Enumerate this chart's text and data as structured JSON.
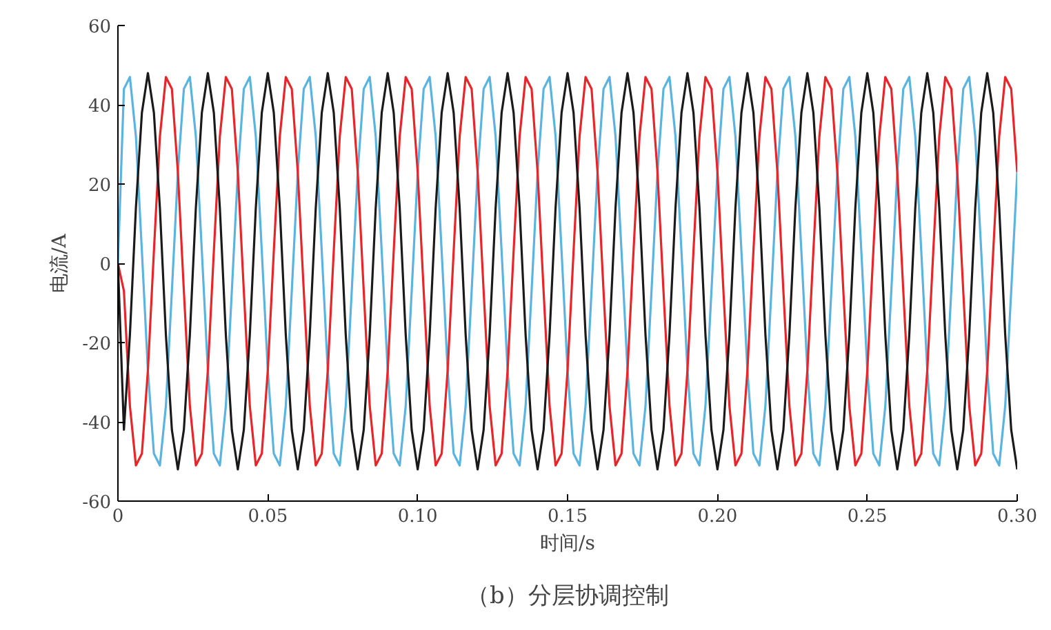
{
  "chart_data": {
    "type": "line",
    "xlabel": "时间/s",
    "ylabel": "电流/A",
    "annotations": [
      "（b）分层协调控制"
    ],
    "x": [
      0,
      0.002,
      0.004,
      0.006,
      0.008,
      0.01,
      0.012,
      0.014,
      0.016,
      0.018,
      0.02,
      0.022,
      0.024,
      0.026,
      0.028,
      0.03,
      0.032,
      0.034,
      0.036,
      0.038,
      0.04,
      0.042,
      0.044,
      0.046,
      0.048,
      0.05,
      0.052,
      0.054,
      0.056,
      0.058,
      0.06,
      0.062,
      0.064,
      0.066,
      0.068,
      0.07,
      0.072,
      0.074,
      0.076,
      0.078,
      0.08,
      0.082,
      0.084,
      0.086,
      0.088,
      0.09,
      0.092,
      0.094,
      0.096,
      0.098,
      0.1,
      0.102,
      0.104,
      0.106,
      0.108,
      0.11,
      0.112,
      0.114,
      0.116,
      0.118,
      0.12,
      0.122,
      0.124,
      0.126,
      0.128,
      0.13,
      0.132,
      0.134,
      0.136,
      0.138,
      0.14,
      0.142,
      0.144,
      0.146,
      0.148,
      0.15,
      0.152,
      0.154,
      0.156,
      0.158,
      0.16,
      0.162,
      0.164,
      0.166,
      0.168,
      0.17,
      0.172,
      0.174,
      0.176,
      0.178,
      0.18,
      0.182,
      0.184,
      0.186,
      0.188,
      0.19,
      0.192,
      0.194,
      0.196,
      0.198,
      0.2,
      0.202,
      0.204,
      0.206,
      0.208,
      0.21,
      0.212,
      0.214,
      0.216,
      0.218,
      0.22,
      0.222,
      0.224,
      0.226,
      0.228,
      0.23,
      0.232,
      0.234,
      0.236,
      0.238,
      0.24,
      0.242,
      0.244,
      0.246,
      0.248,
      0.25,
      0.252,
      0.254,
      0.256,
      0.258,
      0.26,
      0.262,
      0.264,
      0.266,
      0.268,
      0.27,
      0.272,
      0.274,
      0.276,
      0.278,
      0.28,
      0.282,
      0.284,
      0.286,
      0.288,
      0.29,
      0.292,
      0.294,
      0.296,
      0.298,
      0.3
    ],
    "series": [
      {
        "color": "#5bb4e0",
        "values": [
          0,
          44,
          47,
          32,
          3,
          -27,
          -48,
          -51,
          -36,
          -7,
          23,
          44,
          47,
          32,
          3,
          -27,
          -48,
          -51,
          -36,
          -7,
          23,
          44,
          47,
          32,
          3,
          -27,
          -48,
          -51,
          -36,
          -7,
          23,
          44,
          47,
          32,
          3,
          -27,
          -48,
          -51,
          -36,
          -7,
          23,
          44,
          47,
          32,
          3,
          -27,
          -48,
          -51,
          -36,
          -7,
          23,
          44,
          47,
          32,
          3,
          -27,
          -48,
          -51,
          -36,
          -7,
          23,
          44,
          47,
          32,
          3,
          -27,
          -48,
          -51,
          -36,
          -7,
          23,
          44,
          47,
          32,
          3,
          -27,
          -48,
          -51,
          -36,
          -7,
          23,
          44,
          47,
          32,
          3,
          -27,
          -48,
          -51,
          -36,
          -7,
          23,
          44,
          47,
          32,
          3,
          -27,
          -48,
          -51,
          -36,
          -7,
          23,
          44,
          47,
          32,
          3,
          -27,
          -48,
          -51,
          -36,
          -7,
          23,
          44,
          47,
          32,
          3,
          -27,
          -48,
          -51,
          -36,
          -7,
          23,
          44,
          47,
          32,
          3,
          -27,
          -48,
          -51,
          -36,
          -7,
          23,
          44,
          47,
          32,
          3,
          -27,
          -48,
          -51,
          -36,
          -7,
          23,
          44,
          47,
          32,
          3,
          -27,
          -48,
          -51,
          -36,
          -7,
          23
        ]
      },
      {
        "color": "#e8262a",
        "values": [
          0,
          -7,
          -36,
          -51,
          -48,
          -27,
          3,
          32,
          47,
          44,
          23,
          -7,
          -36,
          -51,
          -48,
          -27,
          3,
          32,
          47,
          44,
          23,
          -7,
          -36,
          -51,
          -48,
          -27,
          3,
          32,
          47,
          44,
          23,
          -7,
          -36,
          -51,
          -48,
          -27,
          3,
          32,
          47,
          44,
          23,
          -7,
          -36,
          -51,
          -48,
          -27,
          3,
          32,
          47,
          44,
          23,
          -7,
          -36,
          -51,
          -48,
          -27,
          3,
          32,
          47,
          44,
          23,
          -7,
          -36,
          -51,
          -48,
          -27,
          3,
          32,
          47,
          44,
          23,
          -7,
          -36,
          -51,
          -48,
          -27,
          3,
          32,
          47,
          44,
          23,
          -7,
          -36,
          -51,
          -48,
          -27,
          3,
          32,
          47,
          44,
          23,
          -7,
          -36,
          -51,
          -48,
          -27,
          3,
          32,
          47,
          44,
          23,
          -7,
          -36,
          -51,
          -48,
          -27,
          3,
          32,
          47,
          44,
          23,
          -7,
          -36,
          -51,
          -48,
          -27,
          3,
          32,
          47,
          44,
          23,
          -7,
          -36,
          -51,
          -48,
          -27,
          3,
          32,
          47,
          44,
          23,
          -7,
          -36,
          -51,
          -48,
          -27,
          3,
          32,
          47,
          44,
          23,
          -7,
          -36,
          -51,
          -48,
          -27,
          3,
          32,
          47,
          44,
          23
        ]
      },
      {
        "color": "#1a1a1a",
        "values": [
          0,
          -42,
          -18,
          14,
          38,
          48,
          38,
          14,
          -18,
          -42,
          -52,
          -42,
          -18,
          14,
          38,
          48,
          38,
          14,
          -18,
          -42,
          -52,
          -42,
          -18,
          14,
          38,
          48,
          38,
          14,
          -18,
          -42,
          -52,
          -42,
          -18,
          14,
          38,
          48,
          38,
          14,
          -18,
          -42,
          -52,
          -42,
          -18,
          14,
          38,
          48,
          38,
          14,
          -18,
          -42,
          -52,
          -42,
          -18,
          14,
          38,
          48,
          38,
          14,
          -18,
          -42,
          -52,
          -42,
          -18,
          14,
          38,
          48,
          38,
          14,
          -18,
          -42,
          -52,
          -42,
          -18,
          14,
          38,
          48,
          38,
          14,
          -18,
          -42,
          -52,
          -42,
          -18,
          14,
          38,
          48,
          38,
          14,
          -18,
          -42,
          -52,
          -42,
          -18,
          14,
          38,
          48,
          38,
          14,
          -18,
          -42,
          -52,
          -42,
          -18,
          14,
          38,
          48,
          38,
          14,
          -18,
          -42,
          -52,
          -42,
          -18,
          14,
          38,
          48,
          38,
          14,
          -18,
          -42,
          -52,
          -42,
          -18,
          14,
          38,
          48,
          38,
          14,
          -18,
          -42,
          -52,
          -42,
          -18,
          14,
          38,
          48,
          38,
          14,
          -18,
          -42,
          -52,
          -42,
          -18,
          14,
          38,
          48,
          38,
          14,
          -18,
          -42,
          -52
        ]
      }
    ],
    "xlim": [
      0,
      0.3
    ],
    "ylim": [
      -60,
      60
    ],
    "xticks": [
      0,
      0.05,
      {
        "value": 0.1,
        "label": "0.10"
      },
      0.15,
      {
        "value": 0.2,
        "label": "0.20"
      },
      0.25,
      {
        "value": 0.3,
        "label": "0.30"
      }
    ],
    "yticks": [
      -60,
      -40,
      -20,
      0,
      20,
      40,
      60
    ],
    "grid": false,
    "line_style": "solid"
  }
}
